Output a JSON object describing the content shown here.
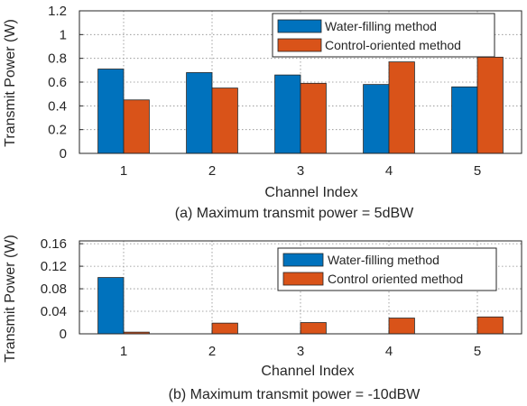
{
  "chart_data": [
    {
      "type": "bar",
      "categories": [
        "1",
        "2",
        "3",
        "4",
        "5"
      ],
      "series": [
        {
          "name": "Water-filling method",
          "values": [
            0.71,
            0.68,
            0.66,
            0.58,
            0.56
          ],
          "color": "#0072BD"
        },
        {
          "name": "Control-oriented method",
          "values": [
            0.45,
            0.55,
            0.59,
            0.77,
            0.81
          ],
          "color": "#D95319"
        }
      ],
      "ylim": [
        0,
        1.2
      ],
      "yticks": [
        "0",
        "0.2",
        "0.4",
        "0.6",
        "0.8",
        "1",
        "1.2"
      ],
      "ytick_values": [
        0,
        0.2,
        0.4,
        0.6,
        0.8,
        1.0,
        1.2
      ],
      "xlabel": "Channel  Index",
      "ylabel": "Transmit Power  (W)",
      "caption": "(a)  Maximum transmit power = 5dBW",
      "grid": true,
      "legend_position": "top-right"
    },
    {
      "type": "bar",
      "categories": [
        "1",
        "2",
        "3",
        "4",
        "5"
      ],
      "series": [
        {
          "name": "Water-filling method",
          "values": [
            0.1,
            0,
            0,
            0,
            0
          ],
          "color": "#0072BD"
        },
        {
          "name": "Control oriented method",
          "values": [
            0.003,
            0.019,
            0.02,
            0.028,
            0.03
          ],
          "color": "#D95319"
        }
      ],
      "ylim": [
        0,
        0.165
      ],
      "yticks": [
        "0",
        "0.04",
        "0.08",
        "0.12",
        "0.16"
      ],
      "ytick_values": [
        0,
        0.04,
        0.08,
        0.12,
        0.16
      ],
      "xlabel": "Channel  Index",
      "ylabel": "Transmit Power  (W)",
      "caption": "(b)  Maximum transmit power = -10dBW",
      "grid": true,
      "legend_position": "top-right"
    }
  ]
}
